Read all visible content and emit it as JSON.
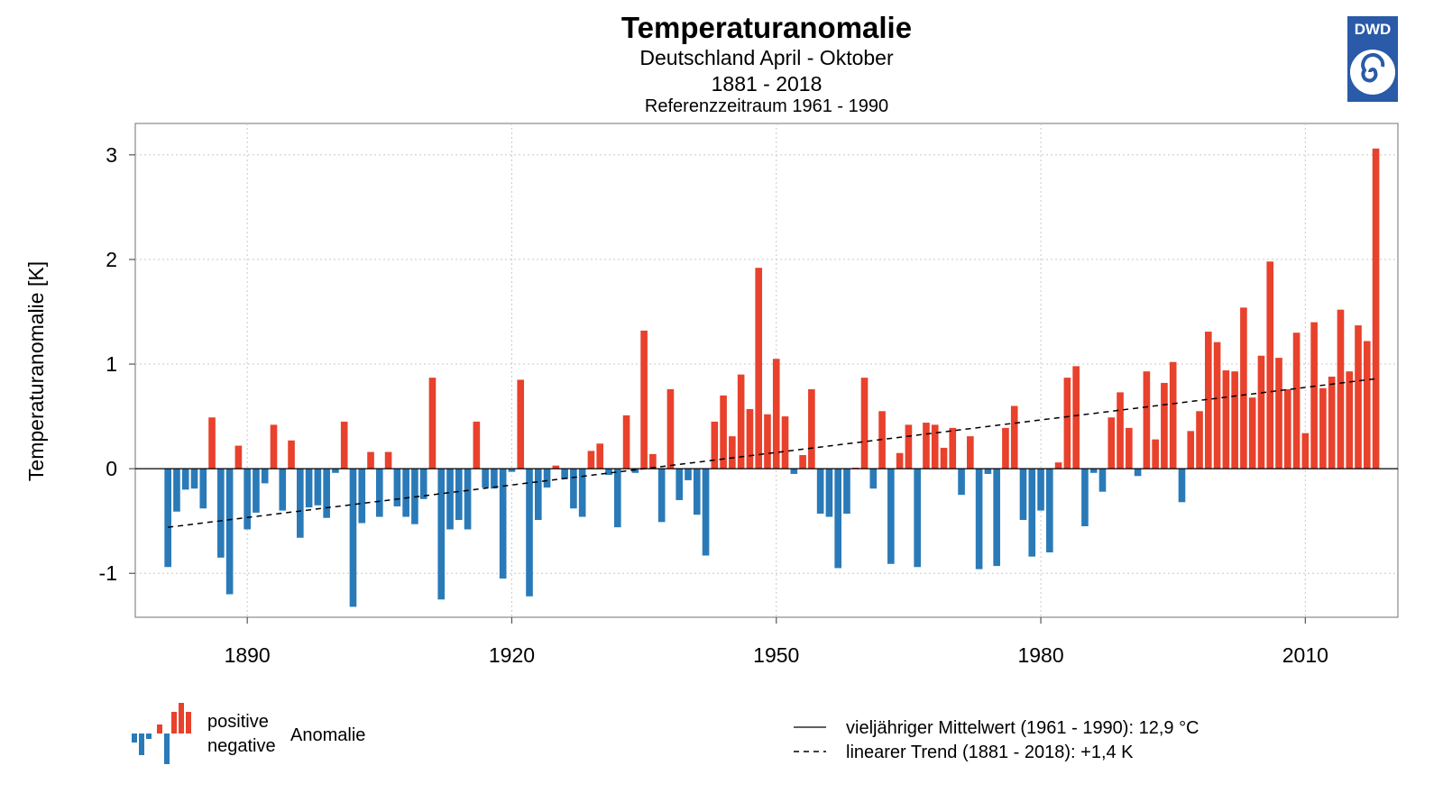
{
  "chart_data": {
    "type": "bar",
    "title": "Temperaturanomalie",
    "subtitle": "Deutschland April - Oktober",
    "period": "1881 - 2018",
    "reference": "Referenzzeitraum 1961 - 1990",
    "ylabel": "Temperaturanomalie [K]",
    "xlabel": "",
    "ylim": [
      -1.42,
      3.3
    ],
    "xlim": [
      1877.3,
      2020.5
    ],
    "yticks": [
      -1,
      0,
      1,
      2,
      3
    ],
    "ytick_labels": [
      "-1",
      "0",
      "1",
      "2",
      "3"
    ],
    "xticks": [
      1890,
      1920,
      1950,
      1980,
      2010
    ],
    "xtick_labels": [
      "1890",
      "1920",
      "1950",
      "1980",
      "2010"
    ],
    "grid": true,
    "baseline_line_style": "solid",
    "trend_line_style": "dashed",
    "trend": {
      "start_year": 1881,
      "end_year": 2018,
      "start_value": -0.56,
      "end_value": 0.86
    },
    "colors": {
      "positive": "#e8412c",
      "negative": "#2a7ab8",
      "axis": "#555555",
      "grid": "#c8c8c8",
      "logo": "#2a5aa8"
    },
    "years": [
      1881,
      1882,
      1883,
      1884,
      1885,
      1886,
      1887,
      1888,
      1889,
      1890,
      1891,
      1892,
      1893,
      1894,
      1895,
      1896,
      1897,
      1898,
      1899,
      1900,
      1901,
      1902,
      1903,
      1904,
      1905,
      1906,
      1907,
      1908,
      1909,
      1910,
      1911,
      1912,
      1913,
      1914,
      1915,
      1916,
      1917,
      1918,
      1919,
      1920,
      1921,
      1922,
      1923,
      1924,
      1925,
      1926,
      1927,
      1928,
      1929,
      1930,
      1931,
      1932,
      1933,
      1934,
      1935,
      1936,
      1937,
      1938,
      1939,
      1940,
      1941,
      1942,
      1943,
      1944,
      1945,
      1946,
      1947,
      1948,
      1949,
      1950,
      1951,
      1952,
      1953,
      1954,
      1955,
      1956,
      1957,
      1958,
      1959,
      1960,
      1961,
      1962,
      1963,
      1964,
      1965,
      1966,
      1967,
      1968,
      1969,
      1970,
      1971,
      1972,
      1973,
      1974,
      1975,
      1976,
      1977,
      1978,
      1979,
      1980,
      1981,
      1982,
      1983,
      1984,
      1985,
      1986,
      1987,
      1988,
      1989,
      1990,
      1991,
      1992,
      1993,
      1994,
      1995,
      1996,
      1997,
      1998,
      1999,
      2000,
      2001,
      2002,
      2003,
      2004,
      2005,
      2006,
      2007,
      2008,
      2009,
      2010,
      2011,
      2012,
      2013,
      2014,
      2015,
      2016,
      2017,
      2018
    ],
    "values": [
      -0.94,
      -0.41,
      -0.2,
      -0.19,
      -0.38,
      0.49,
      -0.85,
      -1.2,
      0.22,
      -0.58,
      -0.42,
      -0.14,
      0.42,
      -0.4,
      0.27,
      -0.66,
      -0.37,
      -0.35,
      -0.47,
      -0.04,
      0.45,
      -1.32,
      -0.52,
      0.16,
      -0.46,
      0.16,
      -0.36,
      -0.46,
      -0.53,
      -0.29,
      0.87,
      -1.25,
      -0.58,
      -0.49,
      -0.58,
      0.45,
      -0.18,
      -0.19,
      -1.05,
      -0.03,
      0.85,
      -1.22,
      -0.49,
      -0.18,
      0.03,
      -0.1,
      -0.38,
      -0.46,
      0.17,
      0.24,
      -0.06,
      -0.56,
      0.51,
      -0.04,
      1.32,
      0.14,
      -0.51,
      0.76,
      -0.3,
      -0.11,
      -0.44,
      -0.83,
      0.45,
      0.7,
      0.31,
      0.9,
      0.57,
      1.92,
      0.52,
      1.05,
      0.5,
      -0.05,
      0.13,
      0.76,
      -0.43,
      -0.46,
      -0.95,
      -0.43,
      0.01,
      0.87,
      -0.19,
      0.55,
      -0.91,
      0.15,
      0.42,
      -0.94,
      0.44,
      0.42,
      0.2,
      0.39,
      -0.25,
      0.31,
      -0.96,
      -0.05,
      -0.93,
      0.39,
      0.6,
      -0.49,
      -0.84,
      -0.4,
      -0.8,
      0.06,
      0.87,
      0.98,
      -0.55,
      -0.04,
      -0.22,
      0.49,
      0.73,
      0.39,
      -0.07,
      0.93,
      0.28,
      0.82,
      1.02,
      -0.32,
      0.36,
      0.55,
      1.31,
      1.21,
      0.94,
      0.93,
      1.54,
      0.68,
      1.08,
      1.98,
      1.06,
      0.76,
      1.3,
      0.34,
      1.4,
      0.77,
      0.88,
      1.52,
      0.93,
      1.37,
      1.22,
      3.06
    ]
  },
  "legend": {
    "positive_label": "positive",
    "negative_label": "negative",
    "anomaly_label": "Anomalie",
    "mean_label": "vieljähriger Mittelwert (1961 - 1990): 12,9 °C",
    "trend_label": "linearer Trend (1881 - 2018): +1,4 K"
  },
  "logo": {
    "text": "DWD"
  }
}
